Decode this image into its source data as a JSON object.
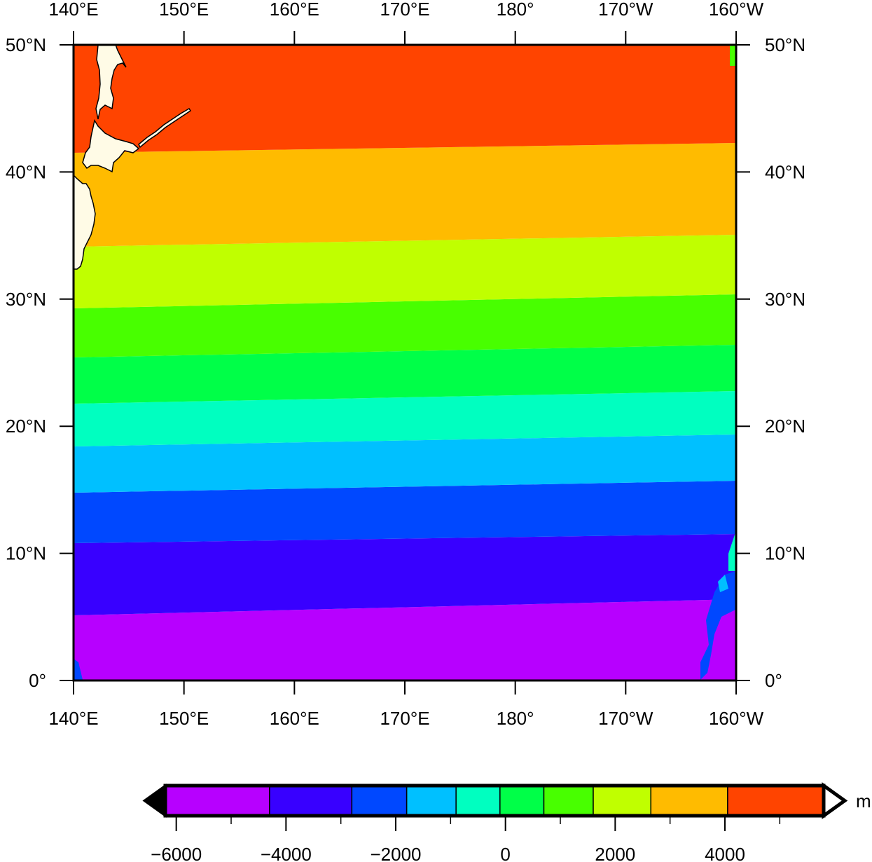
{
  "map": {
    "lon_ticks": [
      "140°E",
      "150°E",
      "160°E",
      "170°E",
      "180°",
      "170°W",
      "160°W"
    ],
    "lat_ticks": [
      "0°",
      "10°N",
      "20°N",
      "30°N",
      "40°N",
      "50°N"
    ],
    "lon_range": [
      140,
      200
    ],
    "lat_range": [
      0,
      50
    ],
    "land_color": "#fffbe6",
    "field_note_colors": [
      "#b700ff",
      "#3800ff",
      "#0048ff",
      "#00c0ff",
      "#00ffc0",
      "#00ff48",
      "#48ff00",
      "#c0ff00",
      "#ffbb00",
      "#ff4400"
    ]
  },
  "colorbar": {
    "unit": "m",
    "tick_labels": [
      "−6000",
      "−4000",
      "−2000",
      "0",
      "2000",
      "4000"
    ],
    "tick_values": [
      -6000,
      -4000,
      -2000,
      0,
      2000,
      4000
    ],
    "range": [
      -6200,
      5800
    ],
    "boundaries": [
      -6200,
      -4300,
      -2800,
      -1800,
      -900,
      -100,
      700,
      1600,
      2650,
      4050,
      5800
    ],
    "colors": [
      "#b700ff",
      "#3800ff",
      "#0048ff",
      "#00c0ff",
      "#00ffc0",
      "#00ff48",
      "#48ff00",
      "#c0ff00",
      "#ffbb00",
      "#ff4400"
    ],
    "under_color": "#000000",
    "over_color": "#ffffff",
    "extend": "both"
  }
}
